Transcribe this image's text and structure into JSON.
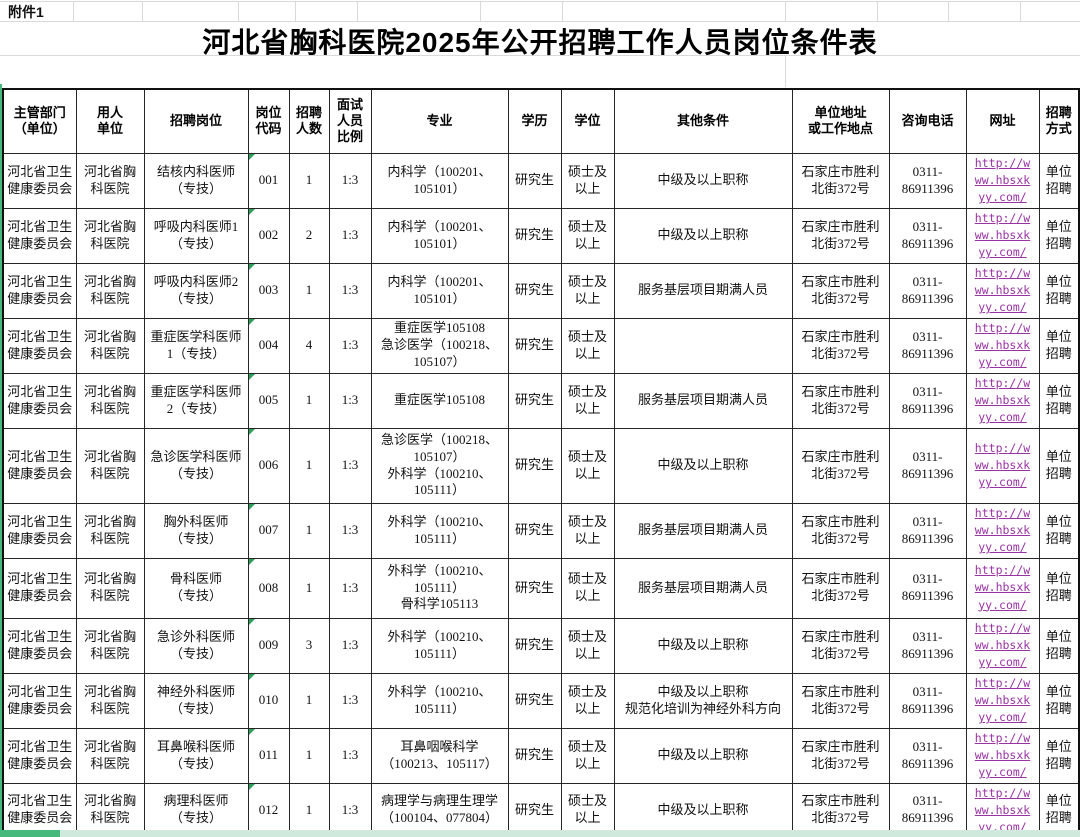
{
  "page": {
    "attachment_label": "附件1",
    "title": "河北省胸科医院2025年公开招聘工作人员岗位条件表"
  },
  "colors": {
    "link_purple": "#9933a3",
    "edge_green": "#45b97c",
    "flag_green": "#2e9e5b"
  },
  "table": {
    "columns": [
      {
        "label": "主管部门\n（单位）"
      },
      {
        "label": "用人\n单位"
      },
      {
        "label": "招聘岗位"
      },
      {
        "label": "岗位\n代码"
      },
      {
        "label": "招聘\n人数"
      },
      {
        "label": "面试\n人员\n比例"
      },
      {
        "label": "专业"
      },
      {
        "label": "学历"
      },
      {
        "label": "学位"
      },
      {
        "label": "其他条件"
      },
      {
        "label": "单位地址\n或工作地点"
      },
      {
        "label": "咨询电话"
      },
      {
        "label": "网址"
      },
      {
        "label": "招聘\n方式"
      }
    ],
    "rows": [
      {
        "dept": "河北省卫生\n健康委员会",
        "employer": "河北省胸\n科医院",
        "position": "结核内科医师\n（专技）",
        "code": "001",
        "count": "1",
        "ratio": "1:3",
        "major": "内科学（100201、\n105101）",
        "education": "研究生",
        "degree": "硕士及\n以上",
        "other": "中级及以上职称",
        "address": "石家庄市胜利\n北街372号",
        "phone": "0311-\n86911396",
        "url_display": "http://w\nww.hbsxk\nyy.com/",
        "method": "单位\n招聘"
      },
      {
        "dept": "河北省卫生\n健康委员会",
        "employer": "河北省胸\n科医院",
        "position": "呼吸内科医师1\n（专技）",
        "code": "002",
        "count": "2",
        "ratio": "1:3",
        "major": "内科学（100201、\n105101）",
        "education": "研究生",
        "degree": "硕士及\n以上",
        "other": "中级及以上职称",
        "address": "石家庄市胜利\n北街372号",
        "phone": "0311-\n86911396",
        "url_display": "http://w\nww.hbsxk\nyy.com/",
        "method": "单位\n招聘"
      },
      {
        "dept": "河北省卫生\n健康委员会",
        "employer": "河北省胸\n科医院",
        "position": "呼吸内科医师2\n（专技）",
        "code": "003",
        "count": "1",
        "ratio": "1:3",
        "major": "内科学（100201、\n105101）",
        "education": "研究生",
        "degree": "硕士及\n以上",
        "other": "服务基层项目期满人员",
        "address": "石家庄市胜利\n北街372号",
        "phone": "0311-\n86911396",
        "url_display": "http://w\nww.hbsxk\nyy.com/",
        "method": "单位\n招聘"
      },
      {
        "dept": "河北省卫生\n健康委员会",
        "employer": "河北省胸\n科医院",
        "position": "重症医学科医师\n1（专技）",
        "code": "004",
        "count": "4",
        "ratio": "1:3",
        "major": "重症医学105108\n急诊医学（100218、\n105107）",
        "education": "研究生",
        "degree": "硕士及\n以上",
        "other": "",
        "address": "石家庄市胜利\n北街372号",
        "phone": "0311-\n86911396",
        "url_display": "http://w\nww.hbsxk\nyy.com/",
        "method": "单位\n招聘"
      },
      {
        "dept": "河北省卫生\n健康委员会",
        "employer": "河北省胸\n科医院",
        "position": "重症医学科医师\n2（专技）",
        "code": "005",
        "count": "1",
        "ratio": "1:3",
        "major": "重症医学105108",
        "education": "研究生",
        "degree": "硕士及\n以上",
        "other": "服务基层项目期满人员",
        "address": "石家庄市胜利\n北街372号",
        "phone": "0311-\n86911396",
        "url_display": "http://w\nww.hbsxk\nyy.com/",
        "method": "单位\n招聘"
      },
      {
        "dept": "河北省卫生\n健康委员会",
        "employer": "河北省胸\n科医院",
        "position": "急诊医学科医师\n（专技）",
        "code": "006",
        "count": "1",
        "ratio": "1:3",
        "major": "急诊医学（100218、\n105107）\n外科学（100210、\n105111）",
        "education": "研究生",
        "degree": "硕士及\n以上",
        "other": "中级及以上职称",
        "address": "石家庄市胜利\n北街372号",
        "phone": "0311-\n86911396",
        "url_display": "http://w\nww.hbsxk\nyy.com/",
        "method": "单位\n招聘"
      },
      {
        "dept": "河北省卫生\n健康委员会",
        "employer": "河北省胸\n科医院",
        "position": "胸外科医师\n（专技）",
        "code": "007",
        "count": "1",
        "ratio": "1:3",
        "major": "外科学（100210、\n105111）",
        "education": "研究生",
        "degree": "硕士及\n以上",
        "other": "服务基层项目期满人员",
        "address": "石家庄市胜利\n北街372号",
        "phone": "0311-\n86911396",
        "url_display": "http://w\nww.hbsxk\nyy.com/",
        "method": "单位\n招聘"
      },
      {
        "dept": "河北省卫生\n健康委员会",
        "employer": "河北省胸\n科医院",
        "position": "骨科医师\n（专技）",
        "code": "008",
        "count": "1",
        "ratio": "1:3",
        "major": "外科学（100210、\n105111）\n骨科学105113",
        "education": "研究生",
        "degree": "硕士及\n以上",
        "other": "服务基层项目期满人员",
        "address": "石家庄市胜利\n北街372号",
        "phone": "0311-\n86911396",
        "url_display": "http://w\nww.hbsxk\nyy.com/",
        "method": "单位\n招聘"
      },
      {
        "dept": "河北省卫生\n健康委员会",
        "employer": "河北省胸\n科医院",
        "position": "急诊外科医师\n（专技）",
        "code": "009",
        "count": "3",
        "ratio": "1:3",
        "major": "外科学（100210、\n105111）",
        "education": "研究生",
        "degree": "硕士及\n以上",
        "other": "中级及以上职称",
        "address": "石家庄市胜利\n北街372号",
        "phone": "0311-\n86911396",
        "url_display": "http://w\nww.hbsxk\nyy.com/",
        "method": "单位\n招聘"
      },
      {
        "dept": "河北省卫生\n健康委员会",
        "employer": "河北省胸\n科医院",
        "position": "神经外科医师\n（专技）",
        "code": "010",
        "count": "1",
        "ratio": "1:3",
        "major": "外科学（100210、\n105111）",
        "education": "研究生",
        "degree": "硕士及\n以上",
        "other": "中级及以上职称\n规范化培训为神经外科方向",
        "address": "石家庄市胜利\n北街372号",
        "phone": "0311-\n86911396",
        "url_display": "http://w\nww.hbsxk\nyy.com/",
        "method": "单位\n招聘"
      },
      {
        "dept": "河北省卫生\n健康委员会",
        "employer": "河北省胸\n科医院",
        "position": "耳鼻喉科医师\n（专技）",
        "code": "011",
        "count": "1",
        "ratio": "1:3",
        "major": "耳鼻咽喉科学\n（100213、105117）",
        "education": "研究生",
        "degree": "硕士及\n以上",
        "other": "中级及以上职称",
        "address": "石家庄市胜利\n北街372号",
        "phone": "0311-\n86911396",
        "url_display": "http://w\nww.hbsxk\nyy.com/",
        "method": "单位\n招聘"
      },
      {
        "dept": "河北省卫生\n健康委员会",
        "employer": "河北省胸\n科医院",
        "position": "病理科医师\n（专技）",
        "code": "012",
        "count": "1",
        "ratio": "1:3",
        "major": "病理学与病理生理学\n（100104、077804）",
        "education": "研究生",
        "degree": "硕士及\n以上",
        "other": "中级及以上职称",
        "address": "石家庄市胜利\n北街372号",
        "phone": "0311-\n86911396",
        "url_display": "http://w\nww.hbsxk\nyy.com/",
        "method": "单位\n招聘"
      }
    ]
  }
}
